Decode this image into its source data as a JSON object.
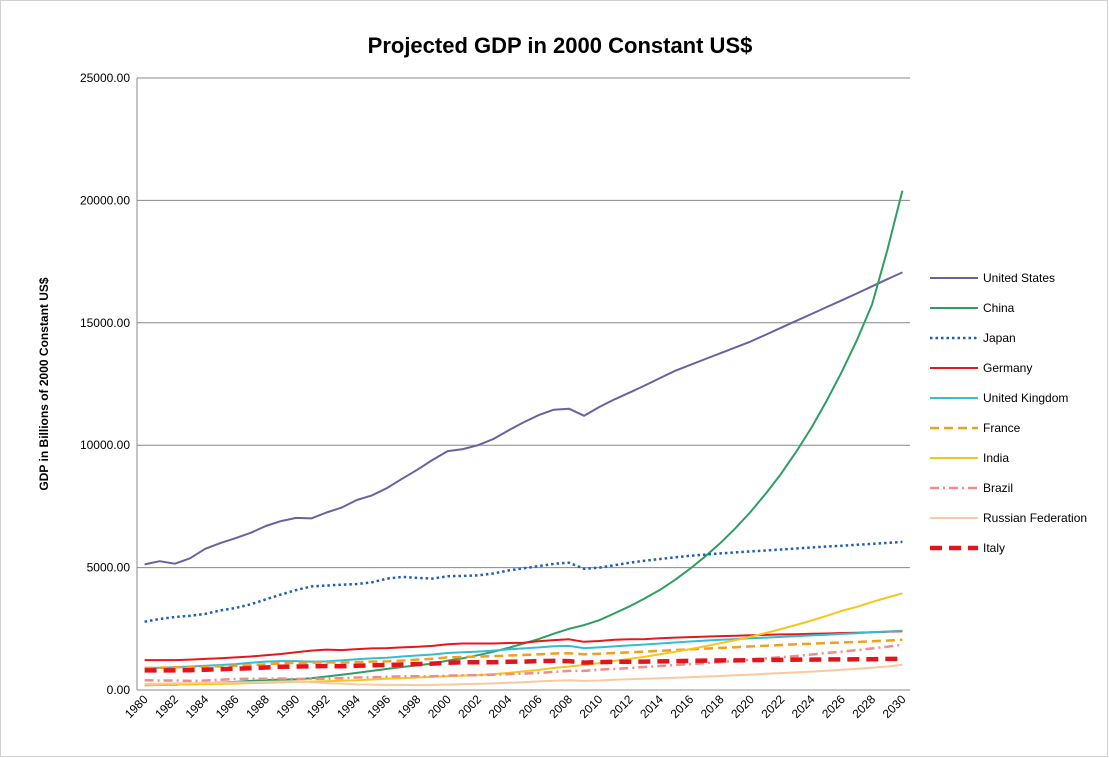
{
  "chart_data": {
    "type": "line",
    "title": "Projected GDP in 2000 Constant US$",
    "y_label": "GDP in Billions of 2000 Constant US$",
    "categories": [
      "1980",
      null,
      "1982",
      null,
      "1984",
      null,
      "1986",
      null,
      "1988",
      null,
      "1990",
      null,
      "1992",
      null,
      "1994",
      null,
      "1996",
      null,
      "1998",
      null,
      "2000",
      null,
      "2002",
      null,
      "2004",
      null,
      "2006",
      null,
      "2008",
      null,
      "2010",
      null,
      "2012",
      null,
      "2014",
      null,
      "2016",
      null,
      "2018",
      null,
      "2020",
      null,
      "2022",
      null,
      "2024",
      null,
      "2026",
      null,
      "2028",
      null,
      "2030"
    ],
    "ylim": [
      0,
      25000
    ],
    "yticks": [
      {
        "value": 0,
        "label": "0.00"
      },
      {
        "value": 5000,
        "label": "5000.00"
      },
      {
        "value": 10000,
        "label": "10000.00"
      },
      {
        "value": 15000,
        "label": "15000.00"
      },
      {
        "value": 20000,
        "label": "20000.00"
      },
      {
        "value": 25000,
        "label": "25000.00"
      }
    ],
    "grid": true,
    "legend": "right",
    "series": [
      {
        "name": "United States",
        "color": "#6a62a0",
        "style": "solid",
        "values": [
          5130,
          5260,
          5160,
          5380,
          5770,
          6000,
          6200,
          6420,
          6700,
          6900,
          7030,
          7010,
          7250,
          7450,
          7760,
          7950,
          8250,
          8630,
          9000,
          9400,
          9760,
          9840,
          10000,
          10250,
          10600,
          10930,
          11230,
          11450,
          11490,
          11200,
          11560,
          11870,
          12150,
          12440,
          12740,
          13040,
          13280,
          13520,
          13760,
          14000,
          14240,
          14520,
          14800,
          15080,
          15360,
          15640,
          15920,
          16200,
          16490,
          16780,
          17060
        ]
      },
      {
        "name": "China",
        "color": "#2e9e63",
        "style": "solid",
        "values": [
          190,
          205,
          215,
          240,
          275,
          305,
          330,
          370,
          410,
          425,
          440,
          480,
          550,
          620,
          700,
          780,
          860,
          940,
          1010,
          1080,
          1200,
          1300,
          1420,
          1560,
          1720,
          1900,
          2080,
          2300,
          2500,
          2650,
          2850,
          3130,
          3420,
          3740,
          4090,
          4500,
          4960,
          5460,
          6010,
          6620,
          7290,
          8030,
          8840,
          9740,
          10720,
          11810,
          13000,
          14300,
          15750,
          17970,
          20400
        ]
      },
      {
        "name": "Japan",
        "color": "#1f5fb0",
        "style": "dot",
        "values": [
          2790,
          2900,
          2980,
          3030,
          3110,
          3250,
          3350,
          3500,
          3700,
          3900,
          4080,
          4230,
          4270,
          4300,
          4330,
          4400,
          4550,
          4620,
          4580,
          4550,
          4650,
          4660,
          4680,
          4760,
          4880,
          4970,
          5060,
          5150,
          5200,
          4950,
          5000,
          5100,
          5200,
          5280,
          5350,
          5420,
          5480,
          5530,
          5580,
          5620,
          5660,
          5700,
          5740,
          5780,
          5820,
          5860,
          5890,
          5930,
          5970,
          6010,
          6050
        ]
      },
      {
        "name": "Germany",
        "color": "#e31a1c",
        "style": "solid",
        "values": [
          1220,
          1220,
          1220,
          1240,
          1270,
          1300,
          1330,
          1370,
          1420,
          1470,
          1540,
          1610,
          1650,
          1630,
          1670,
          1700,
          1710,
          1740,
          1770,
          1800,
          1870,
          1900,
          1900,
          1900,
          1920,
          1930,
          1990,
          2040,
          2070,
          1970,
          2000,
          2050,
          2070,
          2080,
          2110,
          2140,
          2160,
          2180,
          2200,
          2220,
          2240,
          2250,
          2270,
          2280,
          2300,
          2310,
          2330,
          2340,
          2360,
          2380,
          2400
        ]
      },
      {
        "name": "United Kingdom",
        "color": "#35bcd0",
        "style": "solid",
        "values": [
          900,
          910,
          930,
          960,
          990,
          1020,
          1060,
          1110,
          1160,
          1180,
          1180,
          1160,
          1170,
          1210,
          1260,
          1290,
          1320,
          1370,
          1410,
          1450,
          1510,
          1540,
          1570,
          1610,
          1660,
          1700,
          1740,
          1790,
          1800,
          1710,
          1740,
          1780,
          1820,
          1860,
          1900,
          1940,
          1980,
          2020,
          2050,
          2080,
          2110,
          2140,
          2170,
          2200,
          2230,
          2260,
          2290,
          2320,
          2360,
          2390,
          2420
        ]
      },
      {
        "name": "France",
        "color": "#f0a020",
        "style": "dash",
        "values": [
          900,
          910,
          930,
          940,
          950,
          970,
          990,
          1010,
          1050,
          1090,
          1110,
          1120,
          1130,
          1120,
          1140,
          1160,
          1170,
          1200,
          1240,
          1280,
          1330,
          1350,
          1370,
          1380,
          1410,
          1430,
          1460,
          1490,
          1500,
          1460,
          1480,
          1510,
          1540,
          1570,
          1600,
          1630,
          1660,
          1690,
          1720,
          1750,
          1780,
          1810,
          1840,
          1870,
          1890,
          1920,
          1940,
          1960,
          1990,
          2020,
          2050
        ]
      },
      {
        "name": "India",
        "color": "#f7c51c",
        "style": "solid",
        "values": [
          200,
          210,
          220,
          230,
          240,
          250,
          260,
          280,
          300,
          320,
          340,
          345,
          360,
          380,
          400,
          430,
          460,
          480,
          510,
          540,
          560,
          590,
          610,
          650,
          700,
          760,
          820,
          900,
          960,
          1020,
          1100,
          1190,
          1270,
          1360,
          1460,
          1560,
          1670,
          1790,
          1910,
          2040,
          2180,
          2330,
          2490,
          2660,
          2840,
          3030,
          3230,
          3400,
          3600,
          3780,
          3950
        ]
      },
      {
        "name": "Brazil",
        "color": "#f28b8b",
        "style": "dash-dot",
        "values": [
          400,
          390,
          390,
          370,
          390,
          420,
          450,
          460,
          460,
          470,
          450,
          460,
          460,
          480,
          510,
          520,
          540,
          560,
          560,
          560,
          590,
          600,
          610,
          620,
          650,
          670,
          700,
          740,
          780,
          780,
          830,
          860,
          900,
          940,
          980,
          1020,
          1060,
          1100,
          1140,
          1190,
          1240,
          1290,
          1340,
          1390,
          1450,
          1510,
          1570,
          1630,
          1700,
          1770,
          1850
        ]
      },
      {
        "name": "Russian Federation",
        "color": "#f9c9a0",
        "style": "solid",
        "values": [
          250,
          260,
          270,
          280,
          290,
          300,
          310,
          320,
          330,
          340,
          340,
          320,
          280,
          260,
          230,
          220,
          210,
          210,
          200,
          210,
          220,
          240,
          250,
          270,
          300,
          320,
          350,
          380,
          400,
          370,
          390,
          420,
          440,
          460,
          480,
          500,
          520,
          550,
          570,
          600,
          630,
          660,
          690,
          720,
          750,
          790,
          830,
          870,
          910,
          960,
          1030
        ]
      },
      {
        "name": "Italy",
        "color": "#e4141c",
        "style": "bold-dash",
        "values": [
          800,
          800,
          800,
          810,
          830,
          850,
          870,
          890,
          920,
          950,
          960,
          970,
          980,
          970,
          990,
          1010,
          1020,
          1040,
          1060,
          1080,
          1110,
          1130,
          1130,
          1130,
          1150,
          1160,
          1180,
          1190,
          1180,
          1120,
          1140,
          1150,
          1150,
          1160,
          1170,
          1180,
          1190,
          1200,
          1210,
          1210,
          1220,
          1230,
          1230,
          1240,
          1240,
          1250,
          1250,
          1260,
          1260,
          1270,
          1270
        ]
      }
    ]
  }
}
